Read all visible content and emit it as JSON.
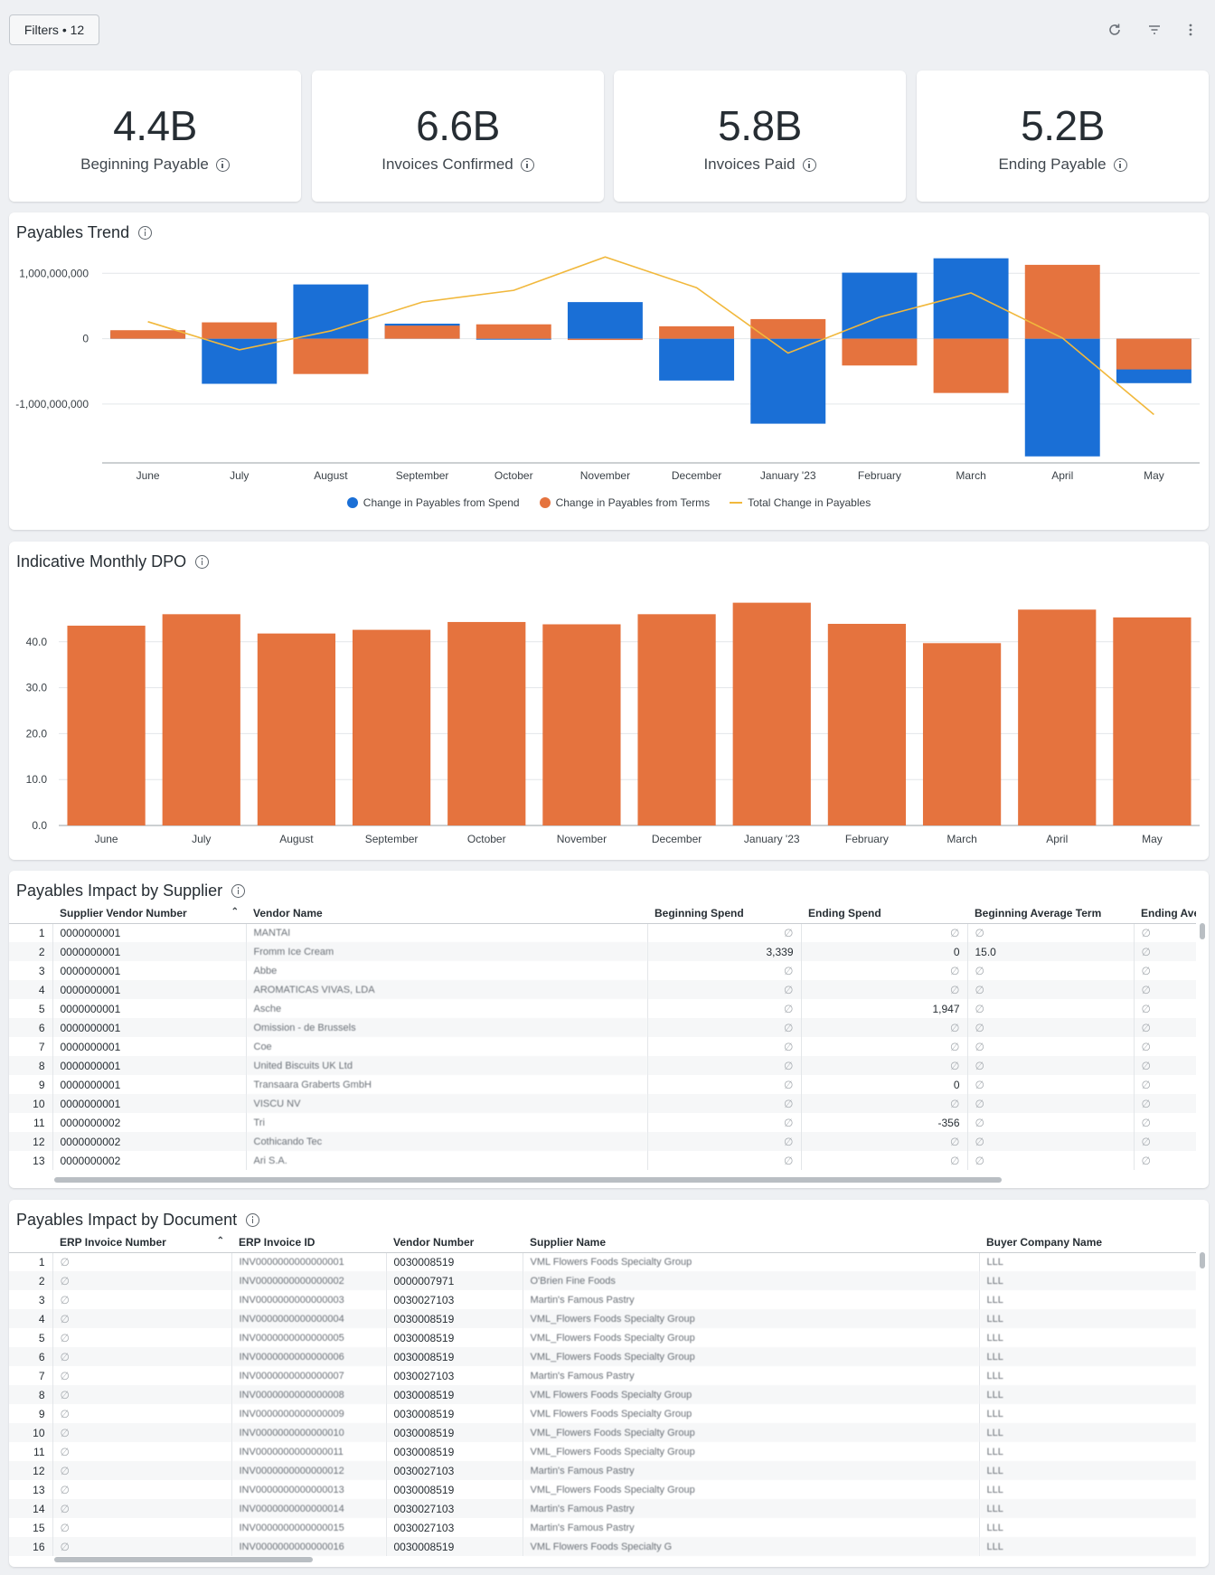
{
  "toolbar": {
    "filters_label": "Filters • 12",
    "icons": [
      "refresh-icon",
      "filter-icon",
      "more-vert-icon"
    ]
  },
  "kpis": [
    {
      "value": "4.4B",
      "label": "Beginning Payable"
    },
    {
      "value": "6.6B",
      "label": "Invoices Confirmed"
    },
    {
      "value": "5.8B",
      "label": "Invoices Paid"
    },
    {
      "value": "5.2B",
      "label": "Ending Payable"
    }
  ],
  "colors": {
    "spend": "#1a6fd6",
    "terms": "#e5733e",
    "total": "#f1b83c",
    "dpo": "#e5733e"
  },
  "trend": {
    "title": "Payables Trend",
    "legend": [
      "Change in Payables from Spend",
      "Change in Payables from Terms",
      "Total Change in Payables"
    ]
  },
  "dpo": {
    "title": "Indicative Monthly DPO"
  },
  "chart_data": [
    {
      "type": "bar",
      "title": "Payables Trend",
      "categories": [
        "June",
        "July",
        "August",
        "September",
        "October",
        "November",
        "December",
        "January '23",
        "February",
        "March",
        "April",
        "May"
      ],
      "y_ticks": [
        "1,000,000,000",
        "0",
        "-1,000,000,000"
      ],
      "ylim": [
        -1900000000,
        1350000000
      ],
      "series": [
        {
          "name": "Change in Payables from Spend",
          "values": [
            110000000,
            -690000000,
            830000000,
            230000000,
            -15000000,
            560000000,
            -640000000,
            -1300000000,
            1010000000,
            1230000000,
            -1800000000,
            -680000000
          ]
        },
        {
          "name": "Change in Payables from Terms",
          "values": [
            130000000,
            250000000,
            -540000000,
            200000000,
            220000000,
            -20000000,
            190000000,
            300000000,
            -410000000,
            -830000000,
            1130000000,
            -470000000
          ]
        },
        {
          "name": "Total Change in Payables",
          "values": [
            260000000,
            -170000000,
            120000000,
            560000000,
            740000000,
            1250000000,
            780000000,
            -220000000,
            330000000,
            700000000,
            10000000,
            -1160000000
          ]
        }
      ]
    },
    {
      "type": "bar",
      "title": "Indicative Monthly DPO",
      "categories": [
        "June",
        "July",
        "August",
        "September",
        "October",
        "November",
        "December",
        "January '23",
        "February",
        "March",
        "April",
        "May"
      ],
      "y_ticks": [
        "0.0",
        "10.0",
        "20.0",
        "30.0",
        "40.0"
      ],
      "ylim": [
        0,
        50
      ],
      "values": [
        43.5,
        46.0,
        41.8,
        42.6,
        44.3,
        43.8,
        46.0,
        48.5,
        43.9,
        39.7,
        47.0,
        45.3
      ]
    }
  ],
  "supplier": {
    "title": "Payables Impact by Supplier",
    "columns": [
      "",
      "Supplier Vendor Number",
      "Vendor Name",
      "Beginning Spend",
      "Ending Spend",
      "Beginning Average Term",
      "Ending Averag"
    ],
    "rows": [
      [
        "1",
        "0000000001",
        "MANTAI",
        "∅",
        "∅",
        "∅",
        "∅"
      ],
      [
        "2",
        "0000000001",
        "Fromm Ice Cream",
        "3,339",
        "0",
        "15.0",
        "∅"
      ],
      [
        "3",
        "0000000001",
        "Abbe",
        "∅",
        "∅",
        "∅",
        "∅"
      ],
      [
        "4",
        "0000000001",
        "AROMATICAS VIVAS, LDA",
        "∅",
        "∅",
        "∅",
        "∅"
      ],
      [
        "5",
        "0000000001",
        "Asche",
        "∅",
        "1,947",
        "∅",
        "∅"
      ],
      [
        "6",
        "0000000001",
        "Omission - de Brussels",
        "∅",
        "∅",
        "∅",
        "∅"
      ],
      [
        "7",
        "0000000001",
        "Coe",
        "∅",
        "∅",
        "∅",
        "∅"
      ],
      [
        "8",
        "0000000001",
        "United Biscuits UK Ltd",
        "∅",
        "∅",
        "∅",
        "∅"
      ],
      [
        "9",
        "0000000001",
        "Transaara Graberts GmbH",
        "∅",
        "0",
        "∅",
        "∅"
      ],
      [
        "10",
        "0000000001",
        "VISCU NV",
        "∅",
        "∅",
        "∅",
        "∅"
      ],
      [
        "11",
        "0000000002",
        "Tri",
        "∅",
        "-356",
        "∅",
        "∅"
      ],
      [
        "12",
        "0000000002",
        "Cothicando Tec",
        "∅",
        "∅",
        "∅",
        "∅"
      ],
      [
        "13",
        "0000000002",
        "Ari S.A.",
        "∅",
        "∅",
        "∅",
        "∅"
      ]
    ]
  },
  "document": {
    "title": "Payables Impact by Document",
    "columns": [
      "",
      "ERP Invoice Number",
      "ERP Invoice ID",
      "Vendor Number",
      "Supplier Name",
      "Buyer Company Name"
    ],
    "rows": [
      [
        "1",
        "∅",
        "INV0000000000000001",
        "0030008519",
        "VML Flowers Foods Specialty Group",
        "LLL"
      ],
      [
        "2",
        "∅",
        "INV0000000000000002",
        "0000007971",
        "O'Brien Fine Foods",
        "LLL"
      ],
      [
        "3",
        "∅",
        "INV0000000000000003",
        "0030027103",
        "Martin's Famous Pastry",
        "LLL"
      ],
      [
        "4",
        "∅",
        "INV0000000000000004",
        "0030008519",
        "VML_Flowers Foods Specialty Group",
        "LLL"
      ],
      [
        "5",
        "∅",
        "INV0000000000000005",
        "0030008519",
        "VML_Flowers Foods Specialty Group",
        "LLL"
      ],
      [
        "6",
        "∅",
        "INV0000000000000006",
        "0030008519",
        "VML_Flowers Foods Specialty Group",
        "LLL"
      ],
      [
        "7",
        "∅",
        "INV0000000000000007",
        "0030027103",
        "Martin's Famous Pastry",
        "LLL"
      ],
      [
        "8",
        "∅",
        "INV0000000000000008",
        "0030008519",
        "VML Flowers Foods Specialty Group",
        "LLL"
      ],
      [
        "9",
        "∅",
        "INV0000000000000009",
        "0030008519",
        "VML Flowers Foods Specialty Group",
        "LLL"
      ],
      [
        "10",
        "∅",
        "INV0000000000000010",
        "0030008519",
        "VML_Flowers Foods Specialty Group",
        "LLL"
      ],
      [
        "11",
        "∅",
        "INV0000000000000011",
        "0030008519",
        "VML_Flowers Foods Specialty Group",
        "LLL"
      ],
      [
        "12",
        "∅",
        "INV0000000000000012",
        "0030027103",
        "Martin's Famous Pastry",
        "LLL"
      ],
      [
        "13",
        "∅",
        "INV0000000000000013",
        "0030008519",
        "VML_Flowers Foods Specialty Group",
        "LLL"
      ],
      [
        "14",
        "∅",
        "INV0000000000000014",
        "0030027103",
        "Martin's Famous Pastry",
        "LLL"
      ],
      [
        "15",
        "∅",
        "INV0000000000000015",
        "0030027103",
        "Martin's Famous Pastry",
        "LLL"
      ],
      [
        "16",
        "∅",
        "INV0000000000000016",
        "0030008519",
        "VML Flowers Foods Specialty G",
        "LLL"
      ]
    ]
  }
}
